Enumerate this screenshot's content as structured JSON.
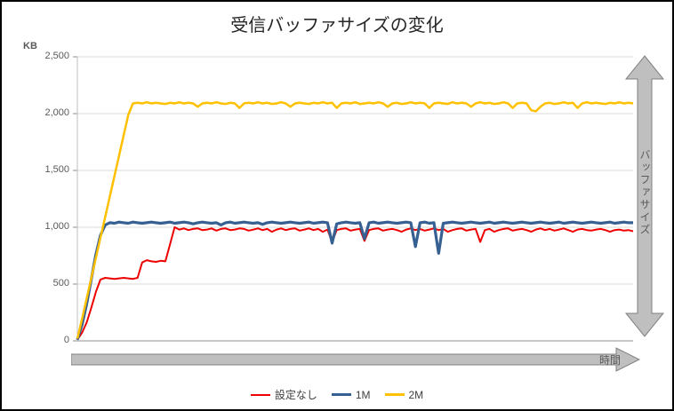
{
  "colors": {
    "background": "#FFFFFF",
    "frame_border": "#000000",
    "arrow_fill": "#BFBFBF",
    "arrow_stroke": "#7F7F7F",
    "gridline": "#D9D9D9",
    "axis": "#8C8C8C"
  },
  "chart_data": {
    "type": "line",
    "title": "受信バッファサイズの変化",
    "ylabel": "KB",
    "xlabel": "",
    "x_axis_annotation": "時間",
    "y_axis_annotation": "バッファサイズ",
    "ylim": [
      0,
      2500
    ],
    "yticks": [
      0,
      500,
      1000,
      1500,
      2000,
      2500
    ],
    "ytick_labels": [
      "0",
      "500",
      "1,000",
      "1,500",
      "2,000",
      "2,500"
    ],
    "grid": true,
    "legend_position": "bottom",
    "series": [
      {
        "name": "設定なし",
        "color": "#EE0000",
        "stroke_width": 2,
        "y": [
          10,
          70,
          160,
          290,
          430,
          540,
          555,
          550,
          545,
          550,
          555,
          550,
          545,
          555,
          690,
          710,
          700,
          695,
          705,
          700,
          850,
          1000,
          980,
          990,
          975,
          985,
          990,
          975,
          980,
          990,
          970,
          985,
          990,
          975,
          980,
          990,
          985,
          970,
          980,
          990,
          975,
          985,
          960,
          980,
          990,
          975,
          985,
          990,
          970,
          980,
          990,
          975,
          985,
          960,
          980,
          870,
          975,
          985,
          990,
          970,
          980,
          985,
          880,
          975,
          985,
          990,
          970,
          980,
          985,
          975,
          960,
          980,
          990,
          975,
          985,
          970,
          980,
          990,
          975,
          985,
          960,
          975,
          985,
          990,
          970,
          980,
          985,
          870,
          975,
          985,
          960,
          975,
          985,
          990,
          970,
          980,
          985,
          975,
          960,
          980,
          990,
          975,
          985,
          970,
          980,
          990,
          975,
          960,
          980,
          985,
          975,
          970,
          980,
          985,
          975,
          960,
          975,
          980,
          970,
          975,
          965
        ]
      },
      {
        "name": "1M",
        "color": "#366092",
        "stroke_width": 3.2,
        "y": [
          10,
          140,
          320,
          540,
          760,
          930,
          1020,
          1040,
          1035,
          1045,
          1040,
          1035,
          1045,
          1040,
          1035,
          1040,
          1045,
          1040,
          1035,
          1040,
          1045,
          1035,
          1040,
          1045,
          1040,
          1030,
          1040,
          1045,
          1040,
          1035,
          1040,
          1020,
          1040,
          1045,
          1035,
          1040,
          1045,
          1040,
          1035,
          1040,
          1025,
          1040,
          1045,
          1040,
          1035,
          1040,
          1045,
          1040,
          1035,
          1040,
          1045,
          1035,
          1040,
          1045,
          1040,
          860,
          1030,
          1040,
          1045,
          1040,
          1035,
          1040,
          900,
          1040,
          1045,
          1035,
          1040,
          1045,
          1040,
          1035,
          1040,
          1045,
          1040,
          830,
          1040,
          1045,
          1035,
          1040,
          770,
          1035,
          1040,
          1045,
          1040,
          1035,
          1040,
          1045,
          1040,
          1035,
          1040,
          1045,
          1035,
          1040,
          1045,
          1040,
          1035,
          1040,
          1045,
          1040,
          1035,
          1040,
          1045,
          1040,
          1035,
          1040,
          1045,
          1035,
          1040,
          1045,
          1040,
          1035,
          1040,
          1045,
          1040,
          1035,
          1040,
          1045,
          1035,
          1040,
          1045,
          1040,
          1040
        ]
      },
      {
        "name": "2M",
        "color": "#FFC000",
        "stroke_width": 2.5,
        "y": [
          20,
          190,
          370,
          550,
          730,
          910,
          1090,
          1270,
          1450,
          1630,
          1810,
          1990,
          2090,
          2095,
          2090,
          2100,
          2090,
          2095,
          2090,
          2085,
          2095,
          2090,
          2100,
          2090,
          2095,
          2090,
          2060,
          2090,
          2095,
          2090,
          2100,
          2090,
          2085,
          2095,
          2090,
          2050,
          2090,
          2095,
          2090,
          2100,
          2090,
          2095,
          2085,
          2090,
          2100,
          2090,
          2060,
          2090,
          2095,
          2090,
          2085,
          2095,
          2090,
          2100,
          2090,
          2095,
          2050,
          2090,
          2095,
          2090,
          2100,
          2085,
          2090,
          2095,
          2090,
          2100,
          2090,
          2060,
          2090,
          2095,
          2085,
          2090,
          2100,
          2090,
          2095,
          2090,
          2050,
          2090,
          2095,
          2090,
          2085,
          2100,
          2090,
          2095,
          2090,
          2060,
          2090,
          2100,
          2090,
          2095,
          2085,
          2090,
          2100,
          2090,
          2050,
          2090,
          2095,
          2090,
          2030,
          2020,
          2060,
          2090,
          2095,
          2085,
          2090,
          2100,
          2090,
          2095,
          2050,
          2090,
          2100,
          2090,
          2095,
          2090,
          2085,
          2095,
          2090,
          2100,
          2090,
          2095,
          2090
        ]
      }
    ]
  }
}
